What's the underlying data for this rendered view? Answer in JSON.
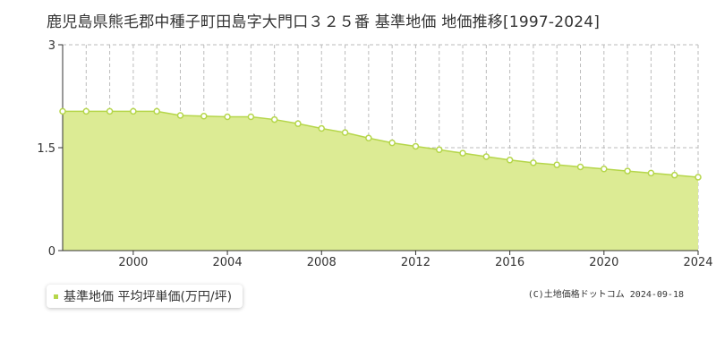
{
  "header": {
    "title": "鹿児島県熊毛郡中種子町田島字大門口３２５番 基準地価 地価推移[1997-2024]"
  },
  "legend": {
    "label": "基準地価 平均坪単価(万円/坪)"
  },
  "footer": {
    "copyright": "(C)土地価格ドットコム 2024-09-18"
  },
  "colors": {
    "area_fill": "#dceb94",
    "line": "#b5d64a",
    "marker_fill": "#ffffff",
    "grid": "#bbbbbb",
    "axis": "#333333",
    "legend_marker": "#b5d64a"
  },
  "chart_data": {
    "type": "area",
    "title": "鹿児島県熊毛郡中種子町田島字大門口３２５番 基準地価 地価推移[1997-2024]",
    "xlabel": "",
    "ylabel": "",
    "xlim": [
      1997,
      2024
    ],
    "ylim": [
      0,
      3
    ],
    "y_ticks": [
      0,
      1.5,
      3
    ],
    "y_tick_labels": [
      "0",
      "1.5",
      "3"
    ],
    "x_ticks": [
      2000,
      2004,
      2008,
      2012,
      2016,
      2020,
      2024
    ],
    "x_tick_labels": [
      "2000",
      "2004",
      "2008",
      "2012",
      "2016",
      "2020",
      "2024"
    ],
    "grid": true,
    "legend_position": "bottom-left",
    "series": [
      {
        "name": "基準地価 平均坪単価(万円/坪)",
        "x": [
          1997,
          1998,
          1999,
          2000,
          2001,
          2002,
          2003,
          2004,
          2005,
          2006,
          2007,
          2008,
          2009,
          2010,
          2011,
          2012,
          2013,
          2014,
          2015,
          2016,
          2017,
          2018,
          2019,
          2020,
          2021,
          2022,
          2023,
          2024
        ],
        "values": [
          2.03,
          2.03,
          2.03,
          2.03,
          2.03,
          1.97,
          1.96,
          1.95,
          1.95,
          1.91,
          1.85,
          1.78,
          1.72,
          1.64,
          1.57,
          1.52,
          1.47,
          1.42,
          1.37,
          1.32,
          1.28,
          1.25,
          1.22,
          1.19,
          1.16,
          1.13,
          1.1,
          1.07
        ]
      }
    ]
  }
}
